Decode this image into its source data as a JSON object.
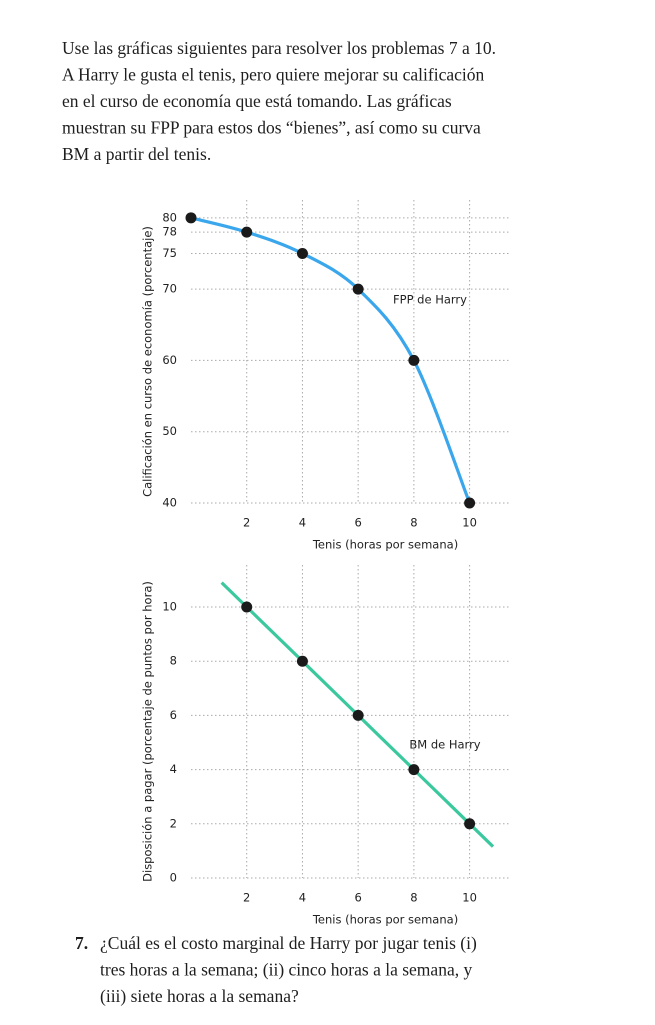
{
  "intro": [
    "Use las gráficas siguientes para resolver los problemas 7 a 10.",
    "A Harry le gusta el tenis, pero quiere mejorar su calificación",
    "en el curso de economía que está tomando. Las gráficas",
    "muestran su FPP para estos dos “bienes”, así como su curva",
    "BM a partir del tenis."
  ],
  "chart_data": [
    {
      "type": "line",
      "x": [
        0,
        2,
        4,
        6,
        8,
        10
      ],
      "series": [
        {
          "name": "FPP de Harry",
          "color": "#3aa6ec",
          "values": [
            80,
            78,
            75,
            70,
            60,
            40
          ]
        }
      ],
      "xlim": [
        0,
        11.45
      ],
      "ylim": [
        40,
        82.5
      ],
      "xticks": [
        2,
        4,
        6,
        8,
        10
      ],
      "yticks": [
        40,
        50,
        60,
        70,
        75,
        78,
        80
      ],
      "xlabel": "Tenis (horas por semana)",
      "ylabel": "Calificación en curso de economía (porcentaje)",
      "grid": true
    },
    {
      "type": "line",
      "x": [
        2,
        4,
        6,
        8,
        10
      ],
      "series": [
        {
          "name": "BM de Harry",
          "color": "#3cc89e",
          "values": [
            10,
            8,
            6,
            4,
            2
          ]
        }
      ],
      "xlim": [
        0,
        11.45
      ],
      "ylim": [
        0,
        11.55
      ],
      "xticks": [
        2,
        4,
        6,
        8,
        10
      ],
      "yticks": [
        0,
        2,
        4,
        6,
        8,
        10
      ],
      "xlabel": "Tenis (horas por semana)",
      "ylabel": "Disposición a pagar (porcentaje de puntos por hora)",
      "grid": true
    }
  ],
  "question": {
    "number": "7.",
    "lines": [
      "¿Cuál es el costo marginal de Harry por jugar tenis (i)",
      "tres horas a la semana; (ii) cinco horas a la semana, y",
      "(iii) siete horas a la semana?"
    ]
  }
}
